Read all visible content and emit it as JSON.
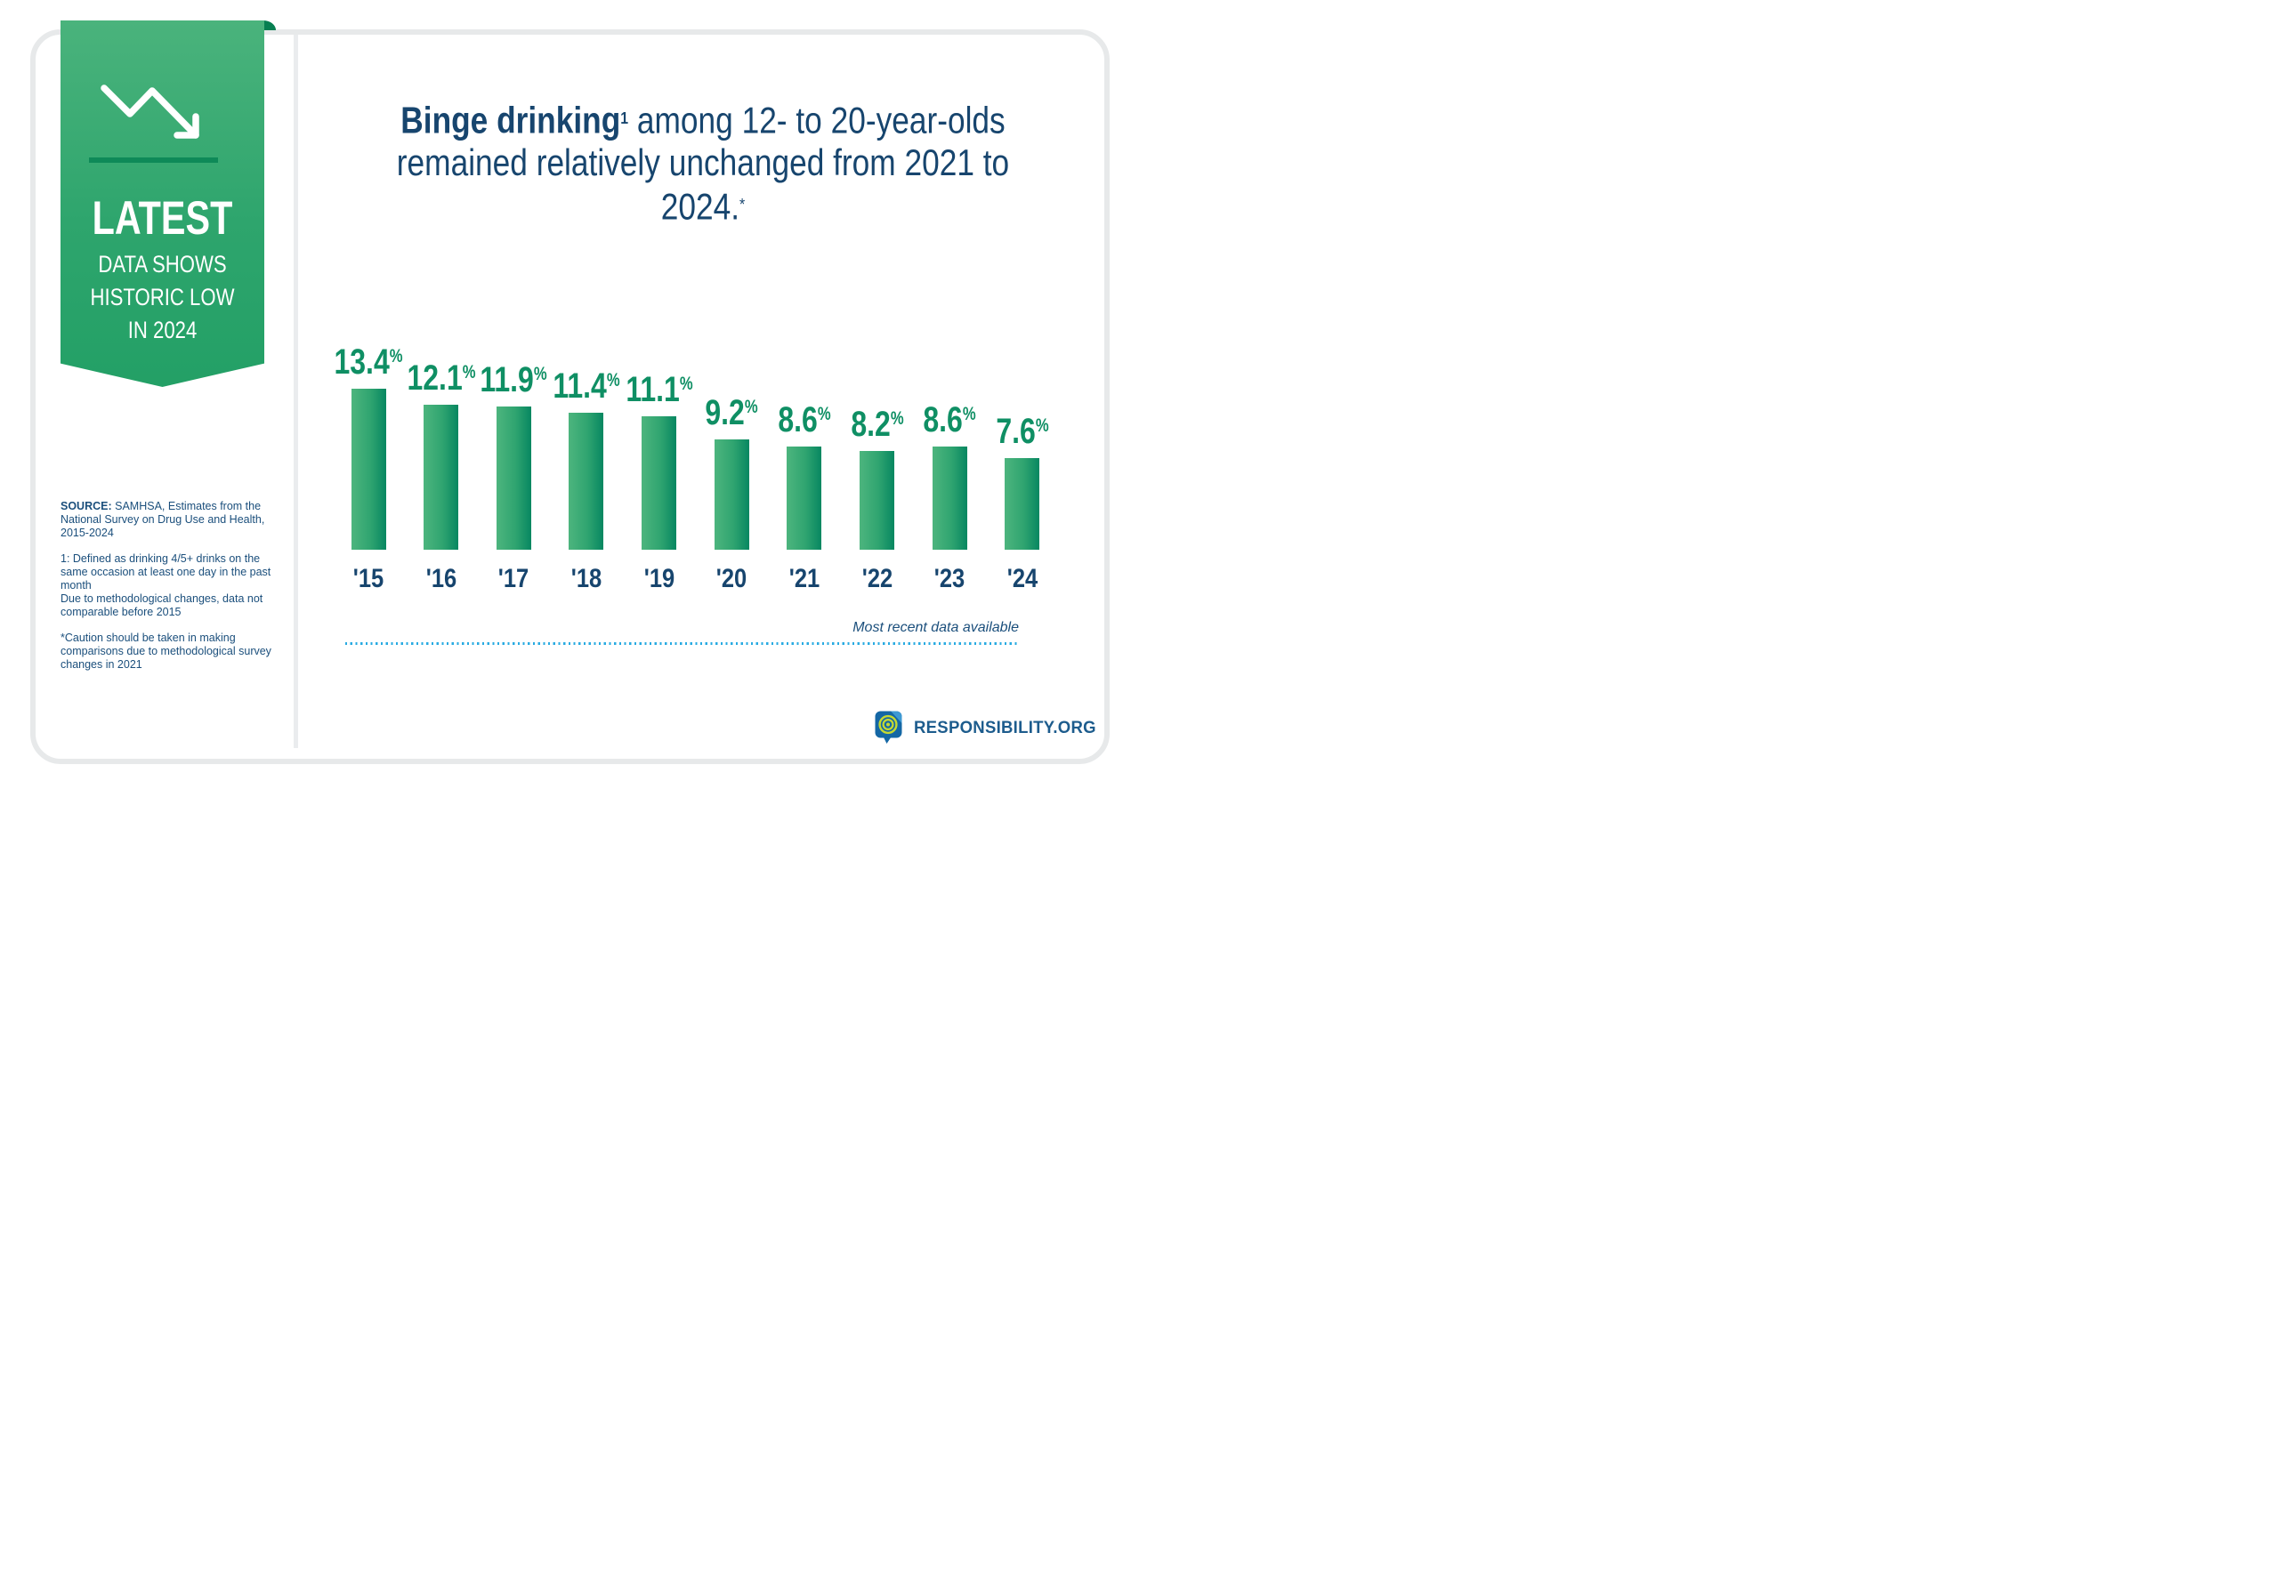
{
  "ribbon": {
    "heading": "LATEST",
    "sub_line1": "DATA SHOWS",
    "sub_line2": "HISTORIC LOW",
    "sub_line3": "IN 2024",
    "icon": "trend-down-arrow-icon",
    "colors": {
      "top": "#4ab37c",
      "bottom": "#23a066",
      "fold": "#077f51",
      "rule": "#0e8a58"
    }
  },
  "source_notes": {
    "source_label": "SOURCE:",
    "source_text": " SAMHSA, Estimates from the National Survey on Drug Use and Health, 2015-2024",
    "note1_line1": "1: Defined as drinking 4/5+ drinks on the same occasion at least one day in the past month",
    "note1_line2": "Due to methodological changes, data not comparable before 2015",
    "note2": "*Caution should be taken in making comparisons due to methodological survey changes in 2021"
  },
  "title": {
    "bold": "Binge drinking",
    "bold_sup": "1",
    "line1_rest": " among 12- to 20-year-olds",
    "line2": "remained relatively unchanged from 2021 to",
    "line3": "2024.",
    "line3_sup": "*"
  },
  "chart_data": {
    "type": "bar",
    "categories": [
      "'15",
      "'16",
      "'17",
      "'18",
      "'19",
      "'20",
      "'21",
      "'22",
      "'23",
      "'24"
    ],
    "values": [
      13.4,
      12.1,
      11.9,
      11.4,
      11.1,
      9.2,
      8.6,
      8.2,
      8.6,
      7.6
    ],
    "unit": "%",
    "title": "Binge drinking among 12- to 20-year-olds, 2015-2024",
    "xlabel": "",
    "ylabel": "",
    "ylim": [
      0,
      14
    ],
    "gridlines": false,
    "legend": null,
    "value_label_color": "#0f8f64",
    "category_label_color": "#17456e",
    "bar_gradient": [
      "#4db57e",
      "#078761"
    ]
  },
  "footnote": {
    "text": "Most recent data available",
    "dotted_rule_color": "#29abe2"
  },
  "footer": {
    "brand": "RESPONSIBILITY.ORG",
    "logo": "responsibility-speech-bubble-target-logo"
  }
}
